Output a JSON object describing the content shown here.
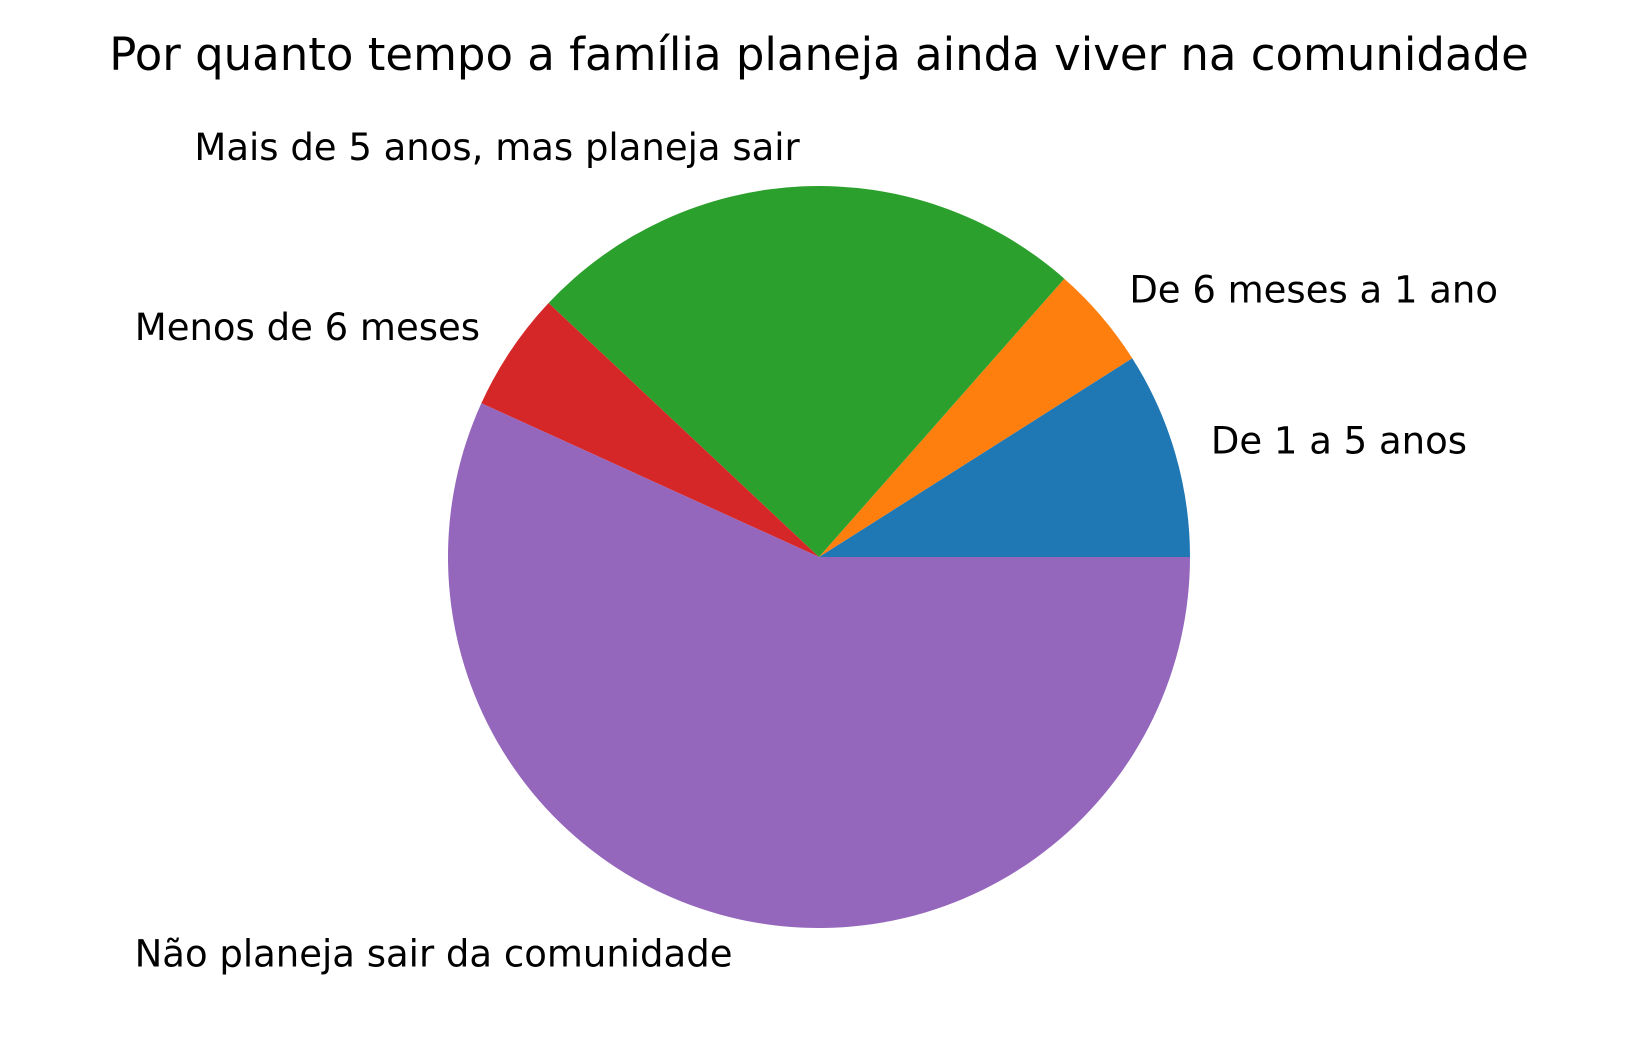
{
  "chart_data": {
    "type": "pie",
    "title": "Por quanto tempo a família planeja ainda viver na comunidade",
    "categories": [
      "De 1 a 5 anos",
      "De 6 meses a 1 ano",
      "Mais de 5 anos, mas planeja sair",
      "Menos de 6 meses",
      "Não planeja sair da comunidade"
    ],
    "values": [
      9.0,
      4.5,
      24.5,
      5.2,
      56.8
    ],
    "colors": [
      "#1f77b4",
      "#ff7f0e",
      "#2ca02c",
      "#d62728",
      "#9467bd"
    ],
    "start_angle_deg": 0,
    "direction": "counterclockwise",
    "legend": "none",
    "grid": false
  }
}
